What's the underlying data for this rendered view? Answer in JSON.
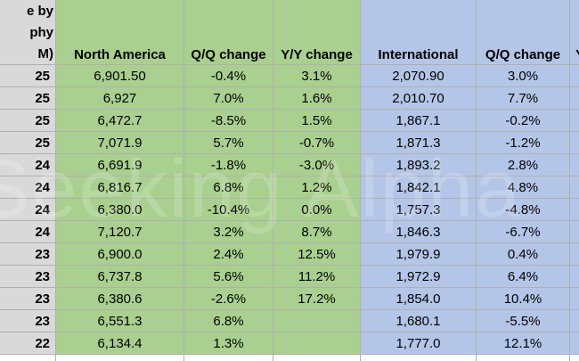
{
  "header": [
    [
      "e by",
      "phy",
      "M)"
    ],
    "North America",
    "Q/Q change",
    "Y/Y change",
    "International",
    "Q/Q change",
    "Y"
  ],
  "rows": [
    [
      "25",
      "6,901.50",
      "-0.4%",
      "3.1%",
      "2,070.90",
      "3.0%"
    ],
    [
      "25",
      "6,927",
      "7.0%",
      "1.6%",
      "2,010.70",
      "7.7%"
    ],
    [
      "25",
      "6,472.7",
      "-8.5%",
      "1.5%",
      "1,867.1",
      "-0.2%"
    ],
    [
      "25",
      "7,071.9",
      "5.7%",
      "-0.7%",
      "1,871.3",
      "-1.2%"
    ],
    [
      "24",
      "6,691.9",
      "-1.8%",
      "-3.0%",
      "1,893.2",
      "2.8%"
    ],
    [
      "24",
      "6,816.7",
      "6.8%",
      "1.2%",
      "1,842.1",
      "4.8%"
    ],
    [
      "24",
      "6,380.0",
      "-10.4%",
      "0.0%",
      "1,757.3",
      "-4.8%"
    ],
    [
      "24",
      "7,120.7",
      "3.2%",
      "8.7%",
      "1,846.3",
      "-6.7%"
    ],
    [
      "23",
      "6,900.0",
      "2.4%",
      "12.5%",
      "1,979.9",
      "0.4%"
    ],
    [
      "23",
      "6,737.8",
      "5.6%",
      "11.2%",
      "1,972.9",
      "6.4%"
    ],
    [
      "23",
      "6,380.6",
      "-2.6%",
      "17.2%",
      "1,854.0",
      "10.4%"
    ],
    [
      "23",
      "6,551.3",
      "6.8%",
      null,
      "1,680.1",
      "-5.5%"
    ],
    [
      "22",
      "6,134.4",
      "1.3%",
      null,
      "1,777.0",
      "12.1%"
    ]
  ],
  "watermark": "Seeking Alpha"
}
